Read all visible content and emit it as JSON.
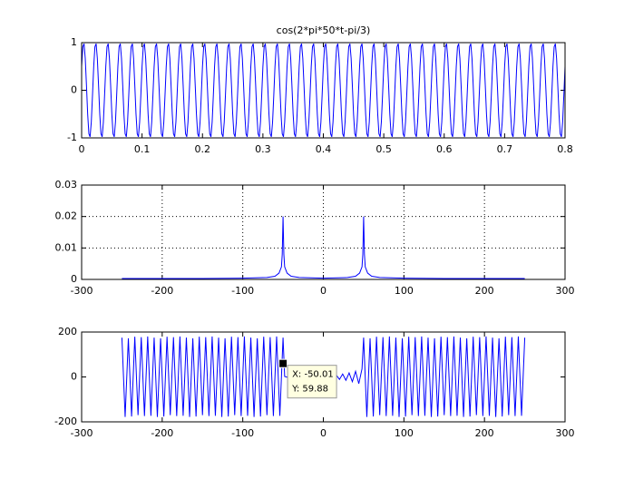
{
  "chart_data": [
    {
      "type": "line",
      "title": "cos(2*pi*50*t-pi/3)",
      "color": "#0000ff",
      "grid": false,
      "xlim": [
        0,
        0.8
      ],
      "xticks": [
        0,
        0.1,
        0.2,
        0.3,
        0.4,
        0.5,
        0.6,
        0.7,
        0.8
      ],
      "ylim": [
        -1,
        1
      ],
      "yticks": [
        -1,
        0,
        1
      ],
      "x": [
        0,
        0.002,
        0.004,
        0.006,
        0.008,
        0.01,
        0.012,
        0.014,
        0.016,
        0.018,
        0.02,
        0.022,
        0.024,
        0.026,
        0.028,
        0.03,
        0.032,
        0.034,
        0.036,
        0.038,
        0.04,
        0.042,
        0.044,
        0.046,
        0.048,
        0.05,
        0.052,
        0.054,
        0.056,
        0.058,
        0.06,
        0.062,
        0.064,
        0.066,
        0.068,
        0.07,
        0.072,
        0.074,
        0.076,
        0.078,
        0.08,
        0.082,
        0.084,
        0.086,
        0.088,
        0.09,
        0.092,
        0.094,
        0.096,
        0.098,
        0.1,
        0.102,
        0.104,
        0.106,
        0.108,
        0.11,
        0.112,
        0.114,
        0.116,
        0.118,
        0.12,
        0.122,
        0.124,
        0.126,
        0.128,
        0.13,
        0.132,
        0.134,
        0.136,
        0.138,
        0.14,
        0.142,
        0.144,
        0.146,
        0.148,
        0.15,
        0.152,
        0.154,
        0.156,
        0.158,
        0.16,
        0.162,
        0.164,
        0.166,
        0.168,
        0.17,
        0.172,
        0.174,
        0.176,
        0.178,
        0.18,
        0.182,
        0.184,
        0.186,
        0.188,
        0.19,
        0.192,
        0.194,
        0.196,
        0.198,
        0.2,
        0.202,
        0.204,
        0.206,
        0.208,
        0.21,
        0.212,
        0.214,
        0.216,
        0.218,
        0.22,
        0.222,
        0.224,
        0.226,
        0.228,
        0.23,
        0.232,
        0.234,
        0.236,
        0.238,
        0.24,
        0.242,
        0.244,
        0.246,
        0.248,
        0.25,
        0.252,
        0.254,
        0.256,
        0.258,
        0.26,
        0.262,
        0.264,
        0.266,
        0.268,
        0.27,
        0.272,
        0.274,
        0.276,
        0.278,
        0.28,
        0.282,
        0.284,
        0.286,
        0.288,
        0.29,
        0.292,
        0.294,
        0.296,
        0.298,
        0.3,
        0.302,
        0.304,
        0.306,
        0.308,
        0.31,
        0.312,
        0.314,
        0.316,
        0.318,
        0.32,
        0.322,
        0.324,
        0.326,
        0.328,
        0.33,
        0.332,
        0.334,
        0.336,
        0.338,
        0.34,
        0.342,
        0.344,
        0.346,
        0.348,
        0.35,
        0.352,
        0.354,
        0.356,
        0.358,
        0.36,
        0.362,
        0.364,
        0.366,
        0.368,
        0.37,
        0.372,
        0.374,
        0.376,
        0.378,
        0.38,
        0.382,
        0.384,
        0.386,
        0.388,
        0.39,
        0.392,
        0.394,
        0.396,
        0.398,
        0.4,
        0.402,
        0.404,
        0.406,
        0.408,
        0.41,
        0.412,
        0.414,
        0.416,
        0.418,
        0.42,
        0.422,
        0.424,
        0.426,
        0.428,
        0.43,
        0.432,
        0.434,
        0.436,
        0.438,
        0.44,
        0.442,
        0.444,
        0.446,
        0.448,
        0.45,
        0.452,
        0.454,
        0.456,
        0.458,
        0.46,
        0.462,
        0.464,
        0.466,
        0.468,
        0.47,
        0.472,
        0.474,
        0.476,
        0.478,
        0.48,
        0.482,
        0.484,
        0.486,
        0.488,
        0.49,
        0.492,
        0.494,
        0.496,
        0.498,
        0.5,
        0.502,
        0.504,
        0.506,
        0.508,
        0.51,
        0.512,
        0.514,
        0.516,
        0.518,
        0.52,
        0.522,
        0.524,
        0.526,
        0.528,
        0.53,
        0.532,
        0.534,
        0.536,
        0.538,
        0.54,
        0.542,
        0.544,
        0.546,
        0.548,
        0.55,
        0.552,
        0.554,
        0.556,
        0.558,
        0.56,
        0.562,
        0.564,
        0.566,
        0.568,
        0.57,
        0.572,
        0.574,
        0.576,
        0.578,
        0.58,
        0.582,
        0.584,
        0.586,
        0.588,
        0.59,
        0.592,
        0.594,
        0.596,
        0.598,
        0.6,
        0.602,
        0.604,
        0.606,
        0.608,
        0.61,
        0.612,
        0.614,
        0.616,
        0.618,
        0.62,
        0.622,
        0.624,
        0.626,
        0.628,
        0.63,
        0.632,
        0.634,
        0.636,
        0.638,
        0.64,
        0.642,
        0.644,
        0.646,
        0.648,
        0.65,
        0.652,
        0.654,
        0.656,
        0.658,
        0.66,
        0.662,
        0.664,
        0.666,
        0.668,
        0.67,
        0.672,
        0.674,
        0.676,
        0.678,
        0.68,
        0.682,
        0.684,
        0.686,
        0.688,
        0.69,
        0.692,
        0.694,
        0.696,
        0.698,
        0.7,
        0.702,
        0.704,
        0.706,
        0.708,
        0.71,
        0.712,
        0.714,
        0.716,
        0.718,
        0.72,
        0.722,
        0.724,
        0.726,
        0.728,
        0.73,
        0.732,
        0.734,
        0.736,
        0.738,
        0.74,
        0.742,
        0.744,
        0.746,
        0.748,
        0.75,
        0.752,
        0.754,
        0.756,
        0.758,
        0.76,
        0.762,
        0.764,
        0.766,
        0.768,
        0.77,
        0.772,
        0.774,
        0.776,
        0.778,
        0.78,
        0.782,
        0.784,
        0.786,
        0.788,
        0.79,
        0.792,
        0.794,
        0.796,
        0.798,
        0.8
      ],
      "values": [
        0.5,
        0.914,
        0.978,
        0.669,
        0.105,
        -0.5,
        -0.914,
        -0.978,
        -0.669,
        -0.105,
        0.5,
        0.914,
        0.978,
        0.669,
        0.105,
        -0.5,
        -0.914,
        -0.978,
        -0.669,
        -0.105,
        0.5,
        0.914,
        0.978,
        0.669,
        0.105,
        -0.5,
        -0.914,
        -0.978,
        -0.669,
        -0.105,
        0.5,
        0.914,
        0.978,
        0.669,
        0.105,
        -0.5,
        -0.914,
        -0.978,
        -0.669,
        -0.105,
        0.5,
        0.914,
        0.978,
        0.669,
        0.105,
        -0.5,
        -0.914,
        -0.978,
        -0.669,
        -0.105,
        0.5,
        0.914,
        0.978,
        0.669,
        0.105,
        -0.5,
        -0.914,
        -0.978,
        -0.669,
        -0.105,
        0.5,
        0.914,
        0.978,
        0.669,
        0.105,
        -0.5,
        -0.914,
        -0.978,
        -0.669,
        -0.105,
        0.5,
        0.914,
        0.978,
        0.669,
        0.105,
        -0.5,
        -0.914,
        -0.978,
        -0.669,
        -0.105,
        0.5,
        0.914,
        0.978,
        0.669,
        0.105,
        -0.5,
        -0.914,
        -0.978,
        -0.669,
        -0.105,
        0.5,
        0.914,
        0.978,
        0.669,
        0.105,
        -0.5,
        -0.914,
        -0.978,
        -0.669,
        -0.105,
        0.5,
        0.914,
        0.978,
        0.669,
        0.105,
        -0.5,
        -0.914,
        -0.978,
        -0.669,
        -0.105,
        0.5,
        0.914,
        0.978,
        0.669,
        0.105,
        -0.5,
        -0.914,
        -0.978,
        -0.669,
        -0.105,
        0.5,
        0.914,
        0.978,
        0.669,
        0.105,
        -0.5,
        -0.914,
        -0.978,
        -0.669,
        -0.105,
        0.5,
        0.914,
        0.978,
        0.669,
        0.105,
        -0.5,
        -0.914,
        -0.978,
        -0.669,
        -0.105,
        0.5,
        0.914,
        0.978,
        0.669,
        0.105,
        -0.5,
        -0.914,
        -0.978,
        -0.669,
        -0.105,
        0.5,
        0.914,
        0.978,
        0.669,
        0.105,
        -0.5,
        -0.914,
        -0.978,
        -0.669,
        -0.105,
        0.5,
        0.914,
        0.978,
        0.669,
        0.105,
        -0.5,
        -0.914,
        -0.978,
        -0.669,
        -0.105,
        0.5,
        0.914,
        0.978,
        0.669,
        0.105,
        -0.5,
        -0.914,
        -0.978,
        -0.669,
        -0.105,
        0.5,
        0.914,
        0.978,
        0.669,
        0.105,
        -0.5,
        -0.914,
        -0.978,
        -0.669,
        -0.105,
        0.5,
        0.914,
        0.978,
        0.669,
        0.105,
        -0.5,
        -0.914,
        -0.978,
        -0.669,
        -0.105,
        0.5,
        0.914,
        0.978,
        0.669,
        0.105,
        -0.5,
        -0.914,
        -0.978,
        -0.669,
        -0.105,
        0.5,
        0.914,
        0.978,
        0.669,
        0.105,
        -0.5,
        -0.914,
        -0.978,
        -0.669,
        -0.105,
        0.5,
        0.914,
        0.978,
        0.669,
        0.105,
        -0.5,
        -0.914,
        -0.978,
        -0.669,
        -0.105,
        0.5,
        0.914,
        0.978,
        0.669,
        0.105,
        -0.5,
        -0.914,
        -0.978,
        -0.669,
        -0.105,
        0.5,
        0.914,
        0.978,
        0.669,
        0.105,
        -0.5,
        -0.914,
        -0.978,
        -0.669,
        -0.105,
        0.5,
        0.914,
        0.978,
        0.669,
        0.105,
        -0.5,
        -0.914,
        -0.978,
        -0.669,
        -0.105,
        0.5,
        0.914,
        0.978,
        0.669,
        0.105,
        -0.5,
        -0.914,
        -0.978,
        -0.669,
        -0.105,
        0.5,
        0.914,
        0.978,
        0.669,
        0.105,
        -0.5,
        -0.914,
        -0.978,
        -0.669,
        -0.105,
        0.5,
        0.914,
        0.978,
        0.669,
        0.105,
        -0.5,
        -0.914,
        -0.978,
        -0.669,
        -0.105,
        0.5,
        0.914,
        0.978,
        0.669,
        0.105,
        -0.5,
        -0.914,
        -0.978,
        -0.669,
        -0.105,
        0.5,
        0.914,
        0.978,
        0.669,
        0.105,
        -0.5,
        -0.914,
        -0.978,
        -0.669,
        -0.105,
        0.5,
        0.914,
        0.978,
        0.669,
        0.105,
        -0.5,
        -0.914,
        -0.978,
        -0.669,
        -0.105,
        0.5,
        0.914,
        0.978,
        0.669,
        0.105,
        -0.5,
        -0.914,
        -0.978,
        -0.669,
        -0.105,
        0.5,
        0.914,
        0.978,
        0.669,
        0.105,
        -0.5,
        -0.914,
        -0.978,
        -0.669,
        -0.105,
        0.5,
        0.914,
        0.978,
        0.669,
        0.105,
        -0.5,
        -0.914,
        -0.978,
        -0.669,
        -0.105,
        0.5,
        0.914,
        0.978,
        0.669,
        0.105,
        -0.5,
        -0.914,
        -0.978,
        -0.669,
        -0.105,
        0.5,
        0.914,
        0.978,
        0.669,
        0.105,
        -0.5,
        -0.914,
        -0.978,
        -0.669,
        -0.105,
        0.5,
        0.914,
        0.978,
        0.669,
        0.105,
        -0.5,
        -0.914,
        -0.978,
        -0.669,
        -0.105,
        0.5,
        0.914,
        0.978,
        0.669,
        0.105,
        -0.5,
        -0.914,
        -0.978,
        -0.669,
        -0.105,
        0.5,
        0.914,
        0.978,
        0.669,
        0.105,
        -0.5,
        -0.914,
        -0.978,
        -0.669,
        -0.105,
        0.5
      ]
    },
    {
      "type": "line",
      "color": "#0000ff",
      "grid": true,
      "xlim": [
        -300,
        300
      ],
      "xticks": [
        -300,
        -200,
        -100,
        0,
        100,
        200,
        300
      ],
      "ylim": [
        0,
        0.03
      ],
      "yticks": [
        0,
        0.01,
        0.02,
        0.03
      ],
      "x": [
        -250,
        -200,
        -150,
        -100,
        -70,
        -60,
        -55,
        -52,
        -51,
        -50,
        -49,
        -48,
        -45,
        -40,
        -30,
        0,
        30,
        40,
        45,
        48,
        49,
        50,
        51,
        52,
        55,
        60,
        70,
        100,
        150,
        200,
        250
      ],
      "values": [
        0.0003,
        0.0003,
        0.0003,
        0.0004,
        0.0006,
        0.001,
        0.002,
        0.004,
        0.008,
        0.02,
        0.008,
        0.004,
        0.002,
        0.001,
        0.0006,
        0.0004,
        0.0006,
        0.001,
        0.002,
        0.004,
        0.008,
        0.02,
        0.008,
        0.004,
        0.002,
        0.001,
        0.0006,
        0.0004,
        0.0003,
        0.0003,
        0.0003
      ]
    },
    {
      "type": "line",
      "color": "#0000ff",
      "grid": false,
      "xlim": [
        -300,
        300
      ],
      "xticks": [
        -300,
        -200,
        -100,
        0,
        100,
        200,
        300
      ],
      "ylim": [
        -200,
        200
      ],
      "yticks": [
        -200,
        0,
        200
      ],
      "x": [
        -250,
        -246,
        -242,
        -238,
        -234,
        -230,
        -226,
        -222,
        -218,
        -214,
        -210,
        -206,
        -202,
        -198,
        -194,
        -190,
        -186,
        -182,
        -178,
        -174,
        -170,
        -166,
        -162,
        -158,
        -154,
        -150,
        -146,
        -142,
        -138,
        -134,
        -130,
        -126,
        -122,
        -118,
        -114,
        -110,
        -106,
        -102,
        -98,
        -94,
        -90,
        -86,
        -82,
        -78,
        -74,
        -70,
        -66,
        -62,
        -58,
        -54,
        -50,
        -48,
        -44,
        -40,
        -36,
        -32,
        -28,
        -24,
        -20,
        -16,
        -12,
        -8,
        -4,
        0,
        4,
        8,
        12,
        16,
        20,
        24,
        28,
        32,
        36,
        40,
        44,
        48,
        50,
        54,
        58,
        62,
        66,
        70,
        74,
        78,
        82,
        86,
        90,
        94,
        98,
        102,
        106,
        110,
        114,
        118,
        122,
        126,
        130,
        134,
        138,
        142,
        146,
        150,
        154,
        158,
        162,
        166,
        170,
        174,
        178,
        182,
        186,
        190,
        194,
        198,
        202,
        206,
        210,
        214,
        218,
        222,
        226,
        230,
        234,
        238,
        242,
        246,
        250
      ],
      "values": [
        175,
        -178,
        172,
        -176,
        179,
        -170,
        177,
        -174,
        180,
        -173,
        175,
        -178,
        172,
        -176,
        179,
        -170,
        177,
        -174,
        180,
        -173,
        175,
        -178,
        172,
        -176,
        179,
        -170,
        177,
        -174,
        180,
        -173,
        175,
        -178,
        172,
        -176,
        179,
        -170,
        177,
        -174,
        180,
        -173,
        175,
        -178,
        172,
        -176,
        179,
        -170,
        177,
        -174,
        180,
        -173,
        175,
        2,
        -2,
        2,
        -2,
        2,
        -2,
        2,
        -3,
        3,
        -3,
        4,
        -4,
        5,
        -6,
        7,
        -8,
        9,
        -11,
        13,
        -15,
        18,
        -21,
        25,
        -30,
        36,
        175,
        -178,
        172,
        -176,
        179,
        -170,
        177,
        -174,
        180,
        -173,
        175,
        -178,
        172,
        -176,
        179,
        -170,
        177,
        -174,
        180,
        -173,
        175,
        -178,
        172,
        -176,
        179,
        -170,
        177,
        -174,
        180,
        -173,
        175,
        -178,
        172,
        -176,
        179,
        -170,
        177,
        -174,
        180,
        -173,
        175,
        -178,
        172,
        -176,
        179,
        -170,
        177,
        -174,
        180,
        -173,
        175
      ],
      "datatip": {
        "x": -50.01,
        "y": 59.88,
        "x_label": "X: -50.01",
        "y_label": "Y: 59.88"
      }
    }
  ]
}
